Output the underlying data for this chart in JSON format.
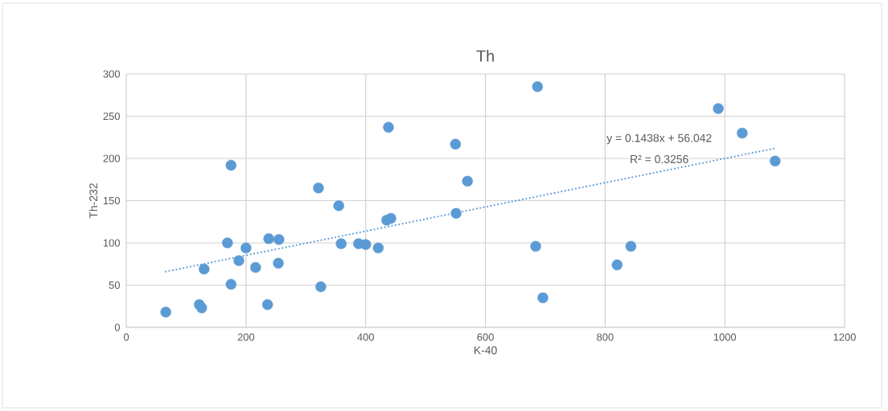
{
  "chart_data": {
    "type": "scatter",
    "title": "Th",
    "xlabel": "K-40",
    "ylabel": "Th-232",
    "xlim": [
      0,
      1200
    ],
    "xticks": [
      0,
      200,
      400,
      600,
      800,
      1000,
      1200
    ],
    "ylim": [
      0,
      300
    ],
    "yticks": [
      0,
      50,
      100,
      150,
      200,
      250,
      300
    ],
    "grid": true,
    "marker": "circle",
    "series": [
      {
        "color": "#5b9bd5",
        "x": [
          66,
          122,
          126,
          130,
          175,
          169,
          188,
          200,
          216,
          175,
          238,
          255,
          254,
          236,
          321,
          325,
          355,
          359,
          388,
          400,
          421,
          435,
          442,
          438,
          550,
          570,
          551,
          687,
          684,
          696,
          820,
          843,
          989,
          1029,
          1084
        ],
        "values": [
          18,
          27,
          23,
          69,
          51,
          100,
          79,
          94,
          71,
          192,
          105,
          104,
          76,
          27,
          165,
          48,
          144,
          99,
          99,
          98,
          94,
          127,
          129,
          237,
          217,
          173,
          135,
          285,
          96,
          35,
          74,
          96,
          259,
          230,
          197
        ]
      },
      {
        "type": "line",
        "color": "#5b9bd5",
        "line_style": "dotted",
        "marker": "none",
        "x": [
          66,
          1084
        ],
        "values": [
          66,
          212
        ]
      }
    ],
    "annotations": [
      "y = 0.1438x + 56.042",
      "R² = 0.3256"
    ]
  }
}
